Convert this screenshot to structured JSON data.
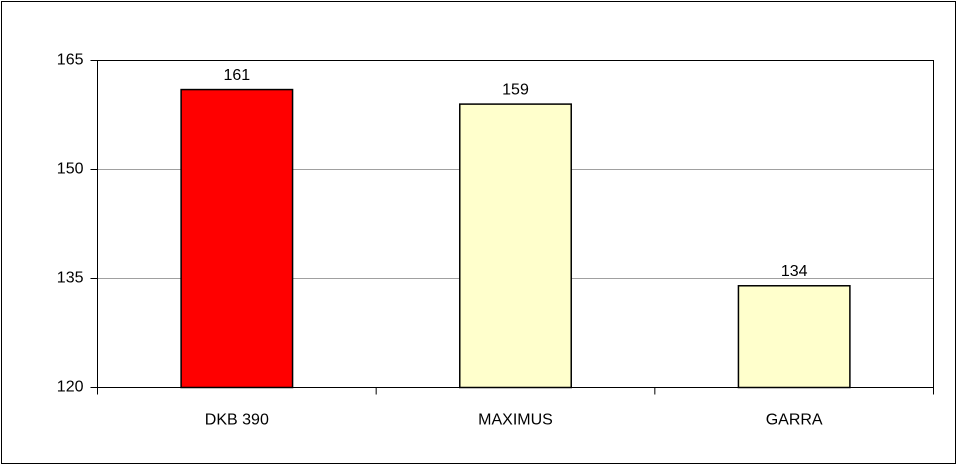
{
  "chart_data": {
    "type": "bar",
    "categories": [
      "DKB 390",
      "MAXIMUS",
      "GARRA"
    ],
    "values": [
      161,
      159,
      134
    ],
    "colors": [
      "#ff0000",
      "#ffffcc",
      "#ffffcc"
    ],
    "ylim": [
      120,
      165
    ],
    "yticks": [
      120,
      135,
      150,
      165
    ],
    "grid": true
  }
}
